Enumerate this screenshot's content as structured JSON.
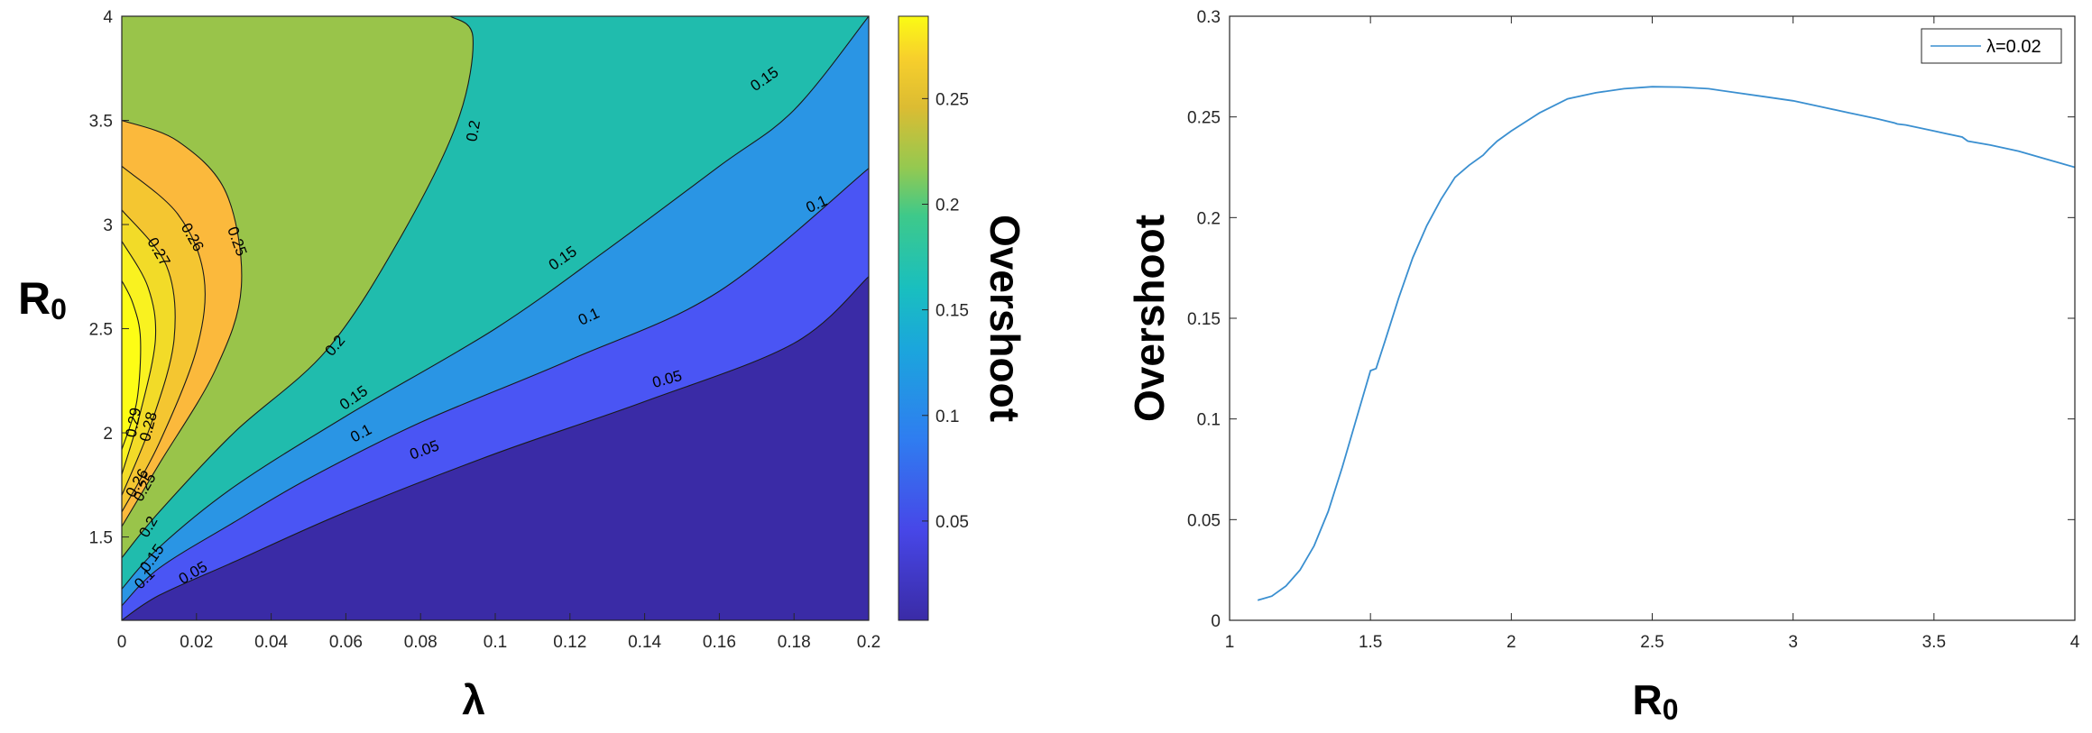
{
  "chart_data": [
    {
      "type": "heatmap",
      "subtype": "filled-contour",
      "xlabel": "λ",
      "ylabel_main": "R",
      "ylabel_sub": "0",
      "colorbar_label": "Overshoot",
      "xlim": [
        0,
        0.2
      ],
      "ylim": [
        1.1,
        4
      ],
      "x_ticks": [
        "0",
        "0.02",
        "0.04",
        "0.06",
        "0.08",
        "0.1",
        "0.12",
        "0.14",
        "0.16",
        "0.18",
        "0.2"
      ],
      "y_ticks": [
        "1.5",
        "2",
        "2.5",
        "3",
        "3.5",
        "4"
      ],
      "colorbar_range": [
        0.003,
        0.289
      ],
      "colorbar_ticks": [
        "0.05",
        "0.1",
        "0.15",
        "0.2",
        "0.25"
      ],
      "levels": [
        0.05,
        0.1,
        0.15,
        0.2,
        0.25,
        0.26,
        0.27,
        0.28,
        0.29
      ],
      "level_colors": [
        "#3a2ba6",
        "#4a55f4",
        "#2a95e4",
        "#20bcad",
        "#99c44a",
        "#fbb93c",
        "#f4c631",
        "#f2db28",
        "#f9f220",
        "#fdfd15"
      ],
      "contour_lines": [
        {
          "level": 0.05,
          "points": [
            [
              0,
              1.1
            ],
            [
              0.01,
              1.22
            ],
            [
              0.03,
              1.38
            ],
            [
              0.06,
              1.62
            ],
            [
              0.1,
              1.9
            ],
            [
              0.14,
              2.15
            ],
            [
              0.18,
              2.43
            ],
            [
              0.2,
              2.75
            ]
          ]
        },
        {
          "level": 0.1,
          "points": [
            [
              0,
              1.17
            ],
            [
              0.01,
              1.35
            ],
            [
              0.03,
              1.57
            ],
            [
              0.05,
              1.78
            ],
            [
              0.08,
              2.05
            ],
            [
              0.12,
              2.35
            ],
            [
              0.16,
              2.68
            ],
            [
              0.2,
              3.27
            ]
          ]
        },
        {
          "level": 0.15,
          "points": [
            [
              0,
              1.25
            ],
            [
              0.01,
              1.45
            ],
            [
              0.03,
              1.74
            ],
            [
              0.06,
              2.08
            ],
            [
              0.1,
              2.5
            ],
            [
              0.13,
              2.88
            ],
            [
              0.16,
              3.28
            ],
            [
              0.18,
              3.55
            ],
            [
              0.2,
              4.0
            ]
          ]
        },
        {
          "level": 0.2,
          "points": [
            [
              0,
              1.4
            ],
            [
              0.01,
              1.62
            ],
            [
              0.03,
              2.0
            ],
            [
              0.055,
              2.4
            ],
            [
              0.075,
              2.95
            ],
            [
              0.09,
              3.5
            ],
            [
              0.094,
              3.9
            ],
            [
              0.088,
              4.0
            ]
          ]
        },
        {
          "level": 0.25,
          "points": [
            [
              0,
              1.55
            ],
            [
              0.01,
              1.85
            ],
            [
              0.025,
              2.3
            ],
            [
              0.032,
              2.7
            ],
            [
              0.028,
              3.15
            ],
            [
              0.015,
              3.4
            ],
            [
              0,
              3.5
            ]
          ]
        },
        {
          "level": 0.26,
          "points": [
            [
              0,
              1.62
            ],
            [
              0.01,
              1.95
            ],
            [
              0.02,
              2.4
            ],
            [
              0.022,
              2.75
            ],
            [
              0.015,
              3.05
            ],
            [
              0,
              3.28
            ]
          ]
        },
        {
          "level": 0.27,
          "points": [
            [
              0,
              1.7
            ],
            [
              0.008,
              2.05
            ],
            [
              0.014,
              2.45
            ],
            [
              0.012,
              2.8
            ],
            [
              0,
              3.07
            ]
          ]
        },
        {
          "level": 0.28,
          "points": [
            [
              0,
              1.8
            ],
            [
              0.005,
              2.1
            ],
            [
              0.009,
              2.45
            ],
            [
              0.007,
              2.7
            ],
            [
              0,
              2.92
            ]
          ]
        },
        {
          "level": 0.29,
          "points": [
            [
              0,
              1.92
            ],
            [
              0.004,
              2.15
            ],
            [
              0.005,
              2.45
            ],
            [
              0.003,
              2.62
            ],
            [
              0,
              2.73
            ]
          ]
        }
      ],
      "contour_labels": [
        {
          "text": "0.05",
          "x": 0.019,
          "y": 1.33,
          "angle": -30
        },
        {
          "text": "0.05",
          "x": 0.081,
          "y": 1.92,
          "angle": -20
        },
        {
          "text": "0.05",
          "x": 0.146,
          "y": 2.26,
          "angle": -15
        },
        {
          "text": "0.1",
          "x": 0.006,
          "y": 1.3,
          "angle": -45
        },
        {
          "text": "0.1",
          "x": 0.064,
          "y": 2.0,
          "angle": -28
        },
        {
          "text": "0.1",
          "x": 0.125,
          "y": 2.56,
          "angle": -25
        },
        {
          "text": "0.1",
          "x": 0.186,
          "y": 3.1,
          "angle": -25
        },
        {
          "text": "0.15",
          "x": 0.008,
          "y": 1.4,
          "angle": -55
        },
        {
          "text": "0.15",
          "x": 0.062,
          "y": 2.17,
          "angle": -35
        },
        {
          "text": "0.15",
          "x": 0.118,
          "y": 2.84,
          "angle": -35
        },
        {
          "text": "0.15",
          "x": 0.172,
          "y": 3.7,
          "angle": -35
        },
        {
          "text": "0.2",
          "x": 0.007,
          "y": 1.55,
          "angle": -60
        },
        {
          "text": "0.2",
          "x": 0.057,
          "y": 2.42,
          "angle": -50
        },
        {
          "text": "0.2",
          "x": 0.094,
          "y": 3.45,
          "angle": -80
        },
        {
          "text": "0.25",
          "x": 0.006,
          "y": 1.74,
          "angle": -60
        },
        {
          "text": "0.25",
          "x": 0.031,
          "y": 2.92,
          "angle": 70
        },
        {
          "text": "0.26",
          "x": 0.004,
          "y": 1.76,
          "angle": -60
        },
        {
          "text": "0.26",
          "x": 0.019,
          "y": 2.94,
          "angle": 60
        },
        {
          "text": "0.27",
          "x": 0.01,
          "y": 2.87,
          "angle": 60
        },
        {
          "text": "0.28",
          "x": 0.007,
          "y": 2.03,
          "angle": -75
        },
        {
          "text": "0.29",
          "x": 0.003,
          "y": 2.05,
          "angle": -80
        }
      ]
    },
    {
      "type": "line",
      "ylabel": "Overshoot",
      "xlabel_main": "R",
      "xlabel_sub": "0",
      "xlim": [
        1,
        4
      ],
      "ylim": [
        0,
        0.3
      ],
      "x_ticks": [
        "1",
        "1.5",
        "2",
        "2.5",
        "3",
        "3.5",
        "4"
      ],
      "y_ticks": [
        "0",
        "0.05",
        "0.1",
        "0.15",
        "0.2",
        "0.25",
        "0.3"
      ],
      "legend_position": "top-right",
      "series": [
        {
          "name": "λ=0.02",
          "color": "#3a8fd0",
          "x": [
            1.1,
            1.15,
            1.2,
            1.25,
            1.3,
            1.35,
            1.4,
            1.45,
            1.5,
            1.52,
            1.55,
            1.6,
            1.65,
            1.7,
            1.75,
            1.8,
            1.85,
            1.9,
            1.92,
            1.95,
            2.0,
            2.1,
            2.2,
            2.3,
            2.4,
            2.5,
            2.6,
            2.7,
            2.8,
            2.9,
            3.0,
            3.1,
            3.2,
            3.3,
            3.36,
            3.37,
            3.4,
            3.5,
            3.6,
            3.62,
            3.7,
            3.8,
            3.9,
            4.0
          ],
          "y": [
            0.01,
            0.012,
            0.017,
            0.025,
            0.037,
            0.054,
            0.076,
            0.1,
            0.124,
            0.125,
            0.138,
            0.16,
            0.18,
            0.196,
            0.209,
            0.22,
            0.226,
            0.231,
            0.234,
            0.238,
            0.243,
            0.252,
            0.259,
            0.262,
            0.264,
            0.265,
            0.2648,
            0.264,
            0.262,
            0.26,
            0.258,
            0.255,
            0.252,
            0.249,
            0.247,
            0.2465,
            0.246,
            0.243,
            0.24,
            0.238,
            0.236,
            0.233,
            0.229,
            0.225
          ]
        }
      ]
    }
  ]
}
